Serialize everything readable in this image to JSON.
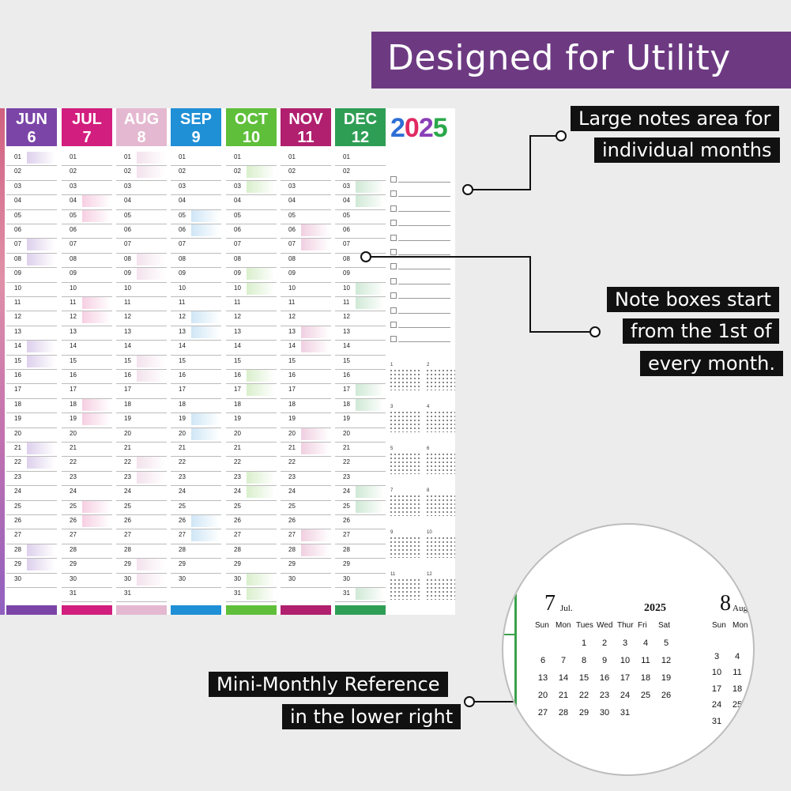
{
  "banner": {
    "title": "Designed for Utility",
    "color": "#6d3a82"
  },
  "calendar": {
    "year": "2025",
    "year_colors": [
      "#2e6fd6",
      "#e02a62",
      "#8a3fb8",
      "#2aa84a"
    ],
    "months": [
      {
        "name": "JUN",
        "num": "6",
        "color": "#7b45a8",
        "tint": "#ddd0ec",
        "days": 30
      },
      {
        "name": "JUL",
        "num": "7",
        "color": "#d21e7e",
        "tint": "#f6cfe2",
        "days": 31
      },
      {
        "name": "AUG",
        "num": "8",
        "color": "#e4b8d0",
        "tint": "#f3e2ec",
        "days": 31
      },
      {
        "name": "SEP",
        "num": "9",
        "color": "#1f8fd6",
        "tint": "#cfe6f6",
        "days": 30
      },
      {
        "name": "OCT",
        "num": "10",
        "color": "#5fbf3a",
        "tint": "#d9efcc",
        "days": 31
      },
      {
        "name": "NOV",
        "num": "11",
        "color": "#b0206e",
        "tint": "#f0cfe0",
        "days": 30
      },
      {
        "name": "DEC",
        "num": "12",
        "color": "#2f9e55",
        "tint": "#cfe9d6",
        "days": 31
      }
    ],
    "day_numbers": [
      "01",
      "02",
      "03",
      "04",
      "05",
      "06",
      "07",
      "08",
      "09",
      "10",
      "11",
      "12",
      "13",
      "14",
      "15",
      "16",
      "17",
      "18",
      "19",
      "20",
      "21",
      "22",
      "23",
      "24",
      "25",
      "26",
      "27",
      "28",
      "29",
      "30",
      "31"
    ],
    "mini_months": [
      "1",
      "2",
      "3",
      "4",
      "5",
      "6",
      "7",
      "8",
      "9",
      "10",
      "11",
      "12"
    ]
  },
  "callouts": {
    "notes_area": [
      "Large notes area for",
      "individual months"
    ],
    "note_boxes": [
      "Note boxes start",
      "from the 1st of",
      "every month."
    ],
    "mini_monthly": [
      "Mini-Monthly Reference",
      "in the lower right"
    ]
  },
  "zoom": {
    "month_a_num": "7",
    "month_a_label": "Jul.",
    "year": "2025",
    "month_b_num": "8",
    "month_b_label": "Aug",
    "weekdays_a": [
      "Sun",
      "Mon",
      "Tues",
      "Wed",
      "Thur",
      "Fri",
      "Sat"
    ],
    "weekdays_b": [
      "Sun",
      "Mon"
    ],
    "weeks_a": [
      [
        "",
        "",
        "1",
        "2",
        "3",
        "4",
        "5"
      ],
      [
        "6",
        "7",
        "8",
        "9",
        "10",
        "11",
        "12"
      ],
      [
        "13",
        "14",
        "15",
        "16",
        "17",
        "18",
        "19"
      ],
      [
        "20",
        "21",
        "22",
        "23",
        "24",
        "25",
        "26"
      ],
      [
        "27",
        "28",
        "29",
        "30",
        "31",
        "",
        ""
      ]
    ],
    "weeks_b": [
      [
        "",
        ""
      ],
      [
        "3",
        "4"
      ],
      [
        "10",
        "11"
      ],
      [
        "17",
        "18"
      ],
      [
        "24",
        "25"
      ],
      [
        "31",
        ""
      ]
    ]
  }
}
